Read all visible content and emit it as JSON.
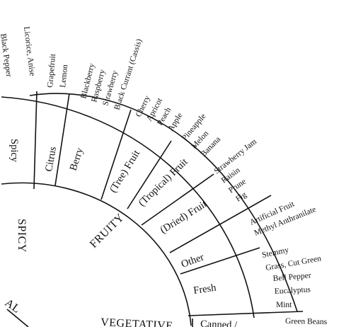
{
  "categories": {
    "spicy": "SPICY",
    "fruity": "FRUITY",
    "vegetative": "VEGETATIVE",
    "floral_partial": "AL"
  },
  "subcategories": {
    "spicy": "Spicy",
    "citrus": "Citrus",
    "berry": "Berry",
    "tree_fruit": "(Tree) Fruit",
    "tropical_fruit": "(Tropical) Fruit",
    "dried_fruit": "(Dried) Fruit",
    "other": "Other",
    "fresh": "Fresh",
    "canned": "Canned /"
  },
  "descriptors": {
    "black_pepper": "Black Pepper",
    "licorice_anise": "Licorice, Anise",
    "grapefruit": "Grapefruit",
    "lemon": "Lemon",
    "blackberry": "Blackberry",
    "raspberry": "Raspberry",
    "strawberry": "Strawberry",
    "black_currant": "Black Currant (Cassis)",
    "cherry": "Cherry",
    "apricot": "Apricot",
    "peach": "Peach",
    "apple": "Apple",
    "pineapple": "Pineapple",
    "melon": "Melon",
    "banana": "Banana",
    "strawberry_jam": "Strawberry Jam",
    "raisin": "Raisin",
    "prune": "Prune",
    "fig": "Fig",
    "artificial_fruit": "Artificial Fruit",
    "methyl_anthranilate": "Methyl Anthranilate",
    "stemmy": "Stemmy",
    "grass_cut_green": "Grass, Cut Green",
    "bell_pepper": "Bell Pepper",
    "eucalyptus": "Eucalyptus",
    "mint": "Mint",
    "green_beans": "Green Beans"
  }
}
